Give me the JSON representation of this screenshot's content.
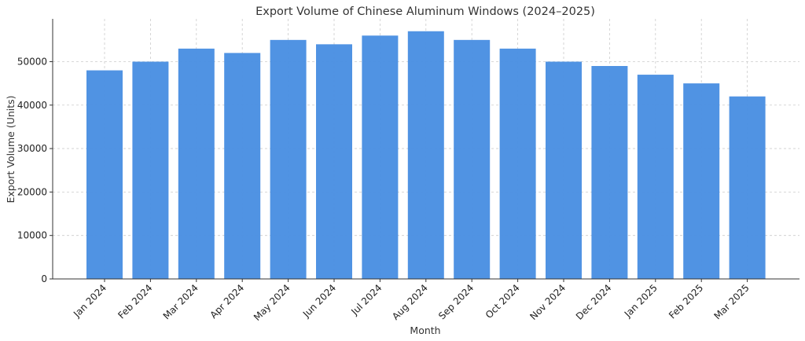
{
  "chart_data": {
    "type": "bar",
    "title": "Export Volume of Chinese Aluminum Windows (2024–2025)",
    "xlabel": "Month",
    "ylabel": "Export Volume (Units)",
    "categories": [
      "Jan 2024",
      "Feb 2024",
      "Mar 2024",
      "Apr 2024",
      "May 2024",
      "Jun 2024",
      "Jul 2024",
      "Aug 2024",
      "Sep 2024",
      "Oct 2024",
      "Nov 2024",
      "Dec 2024",
      "Jan 2025",
      "Feb 2025",
      "Mar 2025"
    ],
    "values": [
      48000,
      50000,
      53000,
      52000,
      55000,
      54000,
      56000,
      57000,
      55000,
      53000,
      50000,
      49000,
      47000,
      45000,
      42000
    ],
    "yticks": [
      0,
      10000,
      20000,
      30000,
      40000,
      50000
    ],
    "ylim": [
      0,
      59850
    ],
    "grid": true,
    "bar_color": "#4a90e2"
  }
}
